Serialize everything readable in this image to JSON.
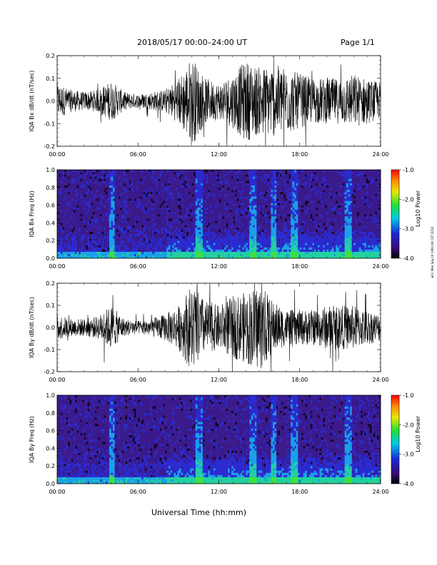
{
  "header": {
    "title": "2018/05/17  00:00–24:00 UT",
    "page": "Page 1/1",
    "xlabel": "Universal Time (hh:mm)",
    "stamp": "wh1 Wed Sep 19 19h0:49 CST 2018"
  },
  "colors": {
    "trace": "#000000",
    "spec_low": "#2a0a5e",
    "spec_high": "#ff0000"
  },
  "chart_data": [
    {
      "type": "line",
      "ylabel": "IQA Bx dB/dt (nT/sec)",
      "xlim": [
        0,
        24
      ],
      "ylim": [
        -0.2,
        0.2
      ],
      "xtick_labels": [
        "00:00",
        "06:00",
        "12:00",
        "18:00",
        "24:00"
      ],
      "ytick_labels": [
        "0.2",
        "0.1",
        "0.0",
        "-0.1",
        "-0.2"
      ],
      "series": [
        {
          "x": [
            0,
            1,
            2,
            3,
            4,
            5,
            6,
            7,
            8,
            9,
            10,
            11,
            12,
            13,
            14,
            15,
            16,
            17,
            18,
            19,
            20,
            21,
            22,
            23,
            24
          ],
          "y_envelope": [
            0.08,
            0.05,
            0.04,
            0.05,
            0.09,
            0.04,
            0.03,
            0.04,
            0.05,
            0.1,
            0.2,
            0.1,
            0.08,
            0.12,
            0.18,
            0.15,
            0.16,
            0.15,
            0.12,
            0.1,
            0.1,
            0.1,
            0.12,
            0.1,
            0.08
          ]
        }
      ]
    },
    {
      "type": "heatmap",
      "ylabel": "IQA Bx Freq (Hz)",
      "xlim": [
        0,
        24
      ],
      "ylim": [
        0.0,
        1.0
      ],
      "xtick_labels": [
        "00:00",
        "06:00",
        "12:00",
        "18:00",
        "24:00"
      ],
      "ytick_labels": [
        "1.0",
        "0.8",
        "0.6",
        "0.4",
        "0.2",
        "0.0"
      ],
      "colorbar_label": "Log10 Power",
      "colorbar_ticks": [
        "-1.0",
        "-2.0",
        "-3.0",
        "-4.0"
      ],
      "zlim": [
        -4.0,
        -1.0
      ]
    },
    {
      "type": "line",
      "ylabel": "IQA By dB/dt (nT/sec)",
      "xlim": [
        0,
        24
      ],
      "ylim": [
        -0.2,
        0.2
      ],
      "xtick_labels": [
        "00:00",
        "06:00",
        "12:00",
        "18:00",
        "24:00"
      ],
      "ytick_labels": [
        "0.2",
        "0.1",
        "0.0",
        "-0.1",
        "-0.2"
      ],
      "series": [
        {
          "x": [
            0,
            1,
            2,
            3,
            4,
            5,
            6,
            7,
            8,
            9,
            10,
            11,
            12,
            13,
            14,
            15,
            16,
            17,
            18,
            19,
            20,
            21,
            22,
            23,
            24
          ],
          "y_envelope": [
            0.06,
            0.04,
            0.04,
            0.05,
            0.1,
            0.04,
            0.03,
            0.04,
            0.06,
            0.1,
            0.2,
            0.12,
            0.1,
            0.14,
            0.16,
            0.2,
            0.12,
            0.08,
            0.08,
            0.08,
            0.1,
            0.1,
            0.1,
            0.08,
            0.06
          ]
        }
      ]
    },
    {
      "type": "heatmap",
      "ylabel": "IQA By Freq (Hz)",
      "xlim": [
        0,
        24
      ],
      "ylim": [
        0.0,
        1.0
      ],
      "xtick_labels": [
        "00:00",
        "06:00",
        "12:00",
        "18:00",
        "24:00"
      ],
      "ytick_labels": [
        "1.0",
        "0.8",
        "0.6",
        "0.4",
        "0.2",
        "0.0"
      ],
      "colorbar_label": "Log10 Power",
      "colorbar_ticks": [
        "-1.0",
        "-2.0",
        "-3.0",
        "-4.0"
      ],
      "zlim": [
        -4.0,
        -1.0
      ]
    }
  ]
}
